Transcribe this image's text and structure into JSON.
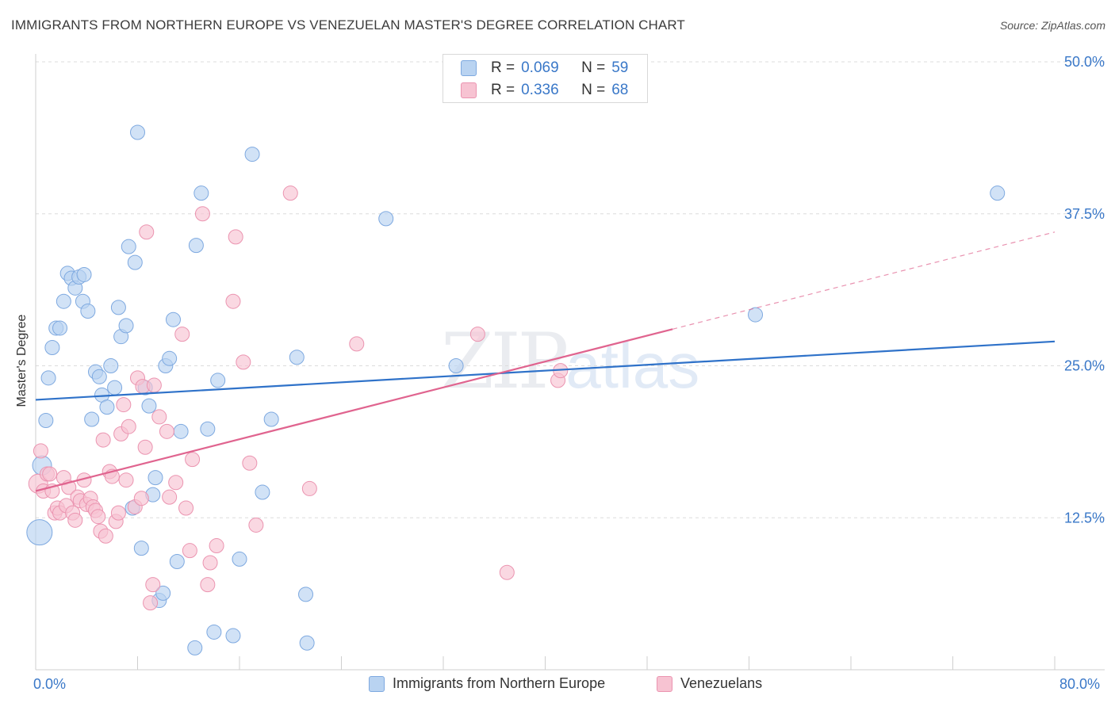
{
  "title": "IMMIGRANTS FROM NORTHERN EUROPE VS VENEZUELAN MASTER'S DEGREE CORRELATION CHART",
  "source": "Source: ZipAtlas.com",
  "watermark": {
    "zip": "ZIP",
    "atlas": "atlas"
  },
  "colors": {
    "blue_fill": "#b9d3f1",
    "blue_stroke": "#7ea9e0",
    "blue_line": "#2f72c9",
    "pink_fill": "#f7c3d2",
    "pink_stroke": "#eb94b0",
    "pink_line": "#e0648f",
    "tick_text": "#3a78c8",
    "grid": "#dcdcdc"
  },
  "legend": {
    "rows": [
      {
        "r_key": "R =",
        "r_val": "0.069",
        "n_key": "N =",
        "n_val": "59"
      },
      {
        "r_key": "R =",
        "r_val": "0.336",
        "n_key": "N =",
        "n_val": "68"
      }
    ]
  },
  "chart_data": {
    "type": "scatter",
    "title": "IMMIGRANTS FROM NORTHERN EUROPE VS VENEZUELAN MASTER'S DEGREE CORRELATION CHART",
    "xlabel": "",
    "ylabel": "Master's Degree",
    "xlim": [
      0,
      80
    ],
    "ylim": [
      0,
      50
    ],
    "x_tick_labels": [
      "0.0%",
      "80.0%"
    ],
    "y_ticks": [
      12.5,
      25.0,
      37.5,
      50.0
    ],
    "y_tick_labels": [
      "12.5%",
      "25.0%",
      "37.5%",
      "50.0%"
    ],
    "grid": true,
    "legend_position": "top-center",
    "series": [
      {
        "name": "Immigrants from Northern Europe",
        "color": "blue",
        "points": [
          [
            0.3,
            11.3,
            3
          ],
          [
            0.5,
            16.8,
            2
          ],
          [
            0.8,
            20.5,
            1
          ],
          [
            1.0,
            24.0,
            1
          ],
          [
            1.3,
            26.5,
            1
          ],
          [
            1.6,
            28.1,
            1
          ],
          [
            1.9,
            28.1,
            1
          ],
          [
            2.2,
            30.3,
            1
          ],
          [
            2.5,
            32.6,
            1
          ],
          [
            2.8,
            32.2,
            1
          ],
          [
            3.1,
            31.4,
            1
          ],
          [
            3.4,
            32.3,
            1
          ],
          [
            3.7,
            30.3,
            1
          ],
          [
            3.8,
            32.5,
            1
          ],
          [
            4.1,
            29.5,
            1
          ],
          [
            4.4,
            20.6,
            1
          ],
          [
            4.7,
            24.5,
            1
          ],
          [
            5.0,
            24.1,
            1
          ],
          [
            5.2,
            22.6,
            1
          ],
          [
            5.6,
            21.6,
            1
          ],
          [
            5.9,
            25.0,
            1
          ],
          [
            6.2,
            23.2,
            1
          ],
          [
            6.5,
            29.8,
            1
          ],
          [
            6.7,
            27.4,
            1
          ],
          [
            7.1,
            28.3,
            1
          ],
          [
            7.3,
            34.8,
            1
          ],
          [
            7.6,
            13.3,
            1
          ],
          [
            7.8,
            33.5,
            1
          ],
          [
            8.0,
            44.2,
            1
          ],
          [
            8.3,
            10.0,
            1
          ],
          [
            8.6,
            23.2,
            1
          ],
          [
            8.9,
            21.7,
            1
          ],
          [
            9.2,
            14.4,
            1
          ],
          [
            9.4,
            15.8,
            1
          ],
          [
            9.7,
            5.7,
            1
          ],
          [
            10.0,
            6.3,
            1
          ],
          [
            10.2,
            25.0,
            1
          ],
          [
            10.5,
            25.6,
            1
          ],
          [
            10.8,
            28.8,
            1
          ],
          [
            11.1,
            8.9,
            1
          ],
          [
            11.4,
            19.6,
            1
          ],
          [
            12.5,
            1.8,
            1
          ],
          [
            12.6,
            34.9,
            1
          ],
          [
            13.0,
            39.2,
            1
          ],
          [
            13.5,
            19.8,
            1
          ],
          [
            14.0,
            3.1,
            1
          ],
          [
            14.3,
            23.8,
            1
          ],
          [
            15.5,
            2.8,
            1
          ],
          [
            16.0,
            9.1,
            1
          ],
          [
            17.0,
            42.4,
            1
          ],
          [
            17.8,
            14.6,
            1
          ],
          [
            18.5,
            20.6,
            1
          ],
          [
            20.5,
            25.7,
            1
          ],
          [
            21.2,
            6.2,
            1
          ],
          [
            21.3,
            2.2,
            1
          ],
          [
            27.5,
            37.1,
            1
          ],
          [
            33.0,
            25.0,
            1
          ],
          [
            56.5,
            29.2,
            1
          ],
          [
            75.5,
            39.2,
            1
          ]
        ],
        "trend": {
          "x0": 0,
          "y0": 22.2,
          "x1": 80,
          "y1": 27.0,
          "solid_until": 80
        }
      },
      {
        "name": "Venezuelans",
        "color": "pink",
        "points": [
          [
            0.2,
            15.3,
            2
          ],
          [
            0.4,
            18.0,
            1
          ],
          [
            0.6,
            14.7,
            1
          ],
          [
            0.9,
            16.1,
            1
          ],
          [
            1.1,
            16.1,
            1
          ],
          [
            1.3,
            14.7,
            1
          ],
          [
            1.5,
            12.9,
            1
          ],
          [
            1.7,
            13.3,
            1
          ],
          [
            1.9,
            12.9,
            1
          ],
          [
            2.2,
            15.8,
            1
          ],
          [
            2.4,
            13.5,
            1
          ],
          [
            2.6,
            15.0,
            1
          ],
          [
            2.9,
            12.9,
            1
          ],
          [
            3.1,
            12.3,
            1
          ],
          [
            3.3,
            14.2,
            1
          ],
          [
            3.5,
            13.9,
            1
          ],
          [
            3.8,
            15.6,
            1
          ],
          [
            4.0,
            13.6,
            1
          ],
          [
            4.3,
            14.1,
            1
          ],
          [
            4.5,
            13.4,
            1
          ],
          [
            4.7,
            13.1,
            1
          ],
          [
            4.9,
            12.6,
            1
          ],
          [
            5.1,
            11.4,
            1
          ],
          [
            5.3,
            18.9,
            1
          ],
          [
            5.5,
            11.0,
            1
          ],
          [
            5.8,
            16.3,
            1
          ],
          [
            6.0,
            15.9,
            1
          ],
          [
            6.3,
            12.2,
            1
          ],
          [
            6.5,
            12.9,
            1
          ],
          [
            6.7,
            19.4,
            1
          ],
          [
            6.9,
            21.8,
            1
          ],
          [
            7.1,
            15.6,
            1
          ],
          [
            7.3,
            20.0,
            1
          ],
          [
            7.8,
            13.4,
            1
          ],
          [
            8.0,
            24.0,
            1
          ],
          [
            8.3,
            14.1,
            1
          ],
          [
            8.4,
            23.3,
            1
          ],
          [
            8.7,
            36.0,
            1
          ],
          [
            8.6,
            18.3,
            1
          ],
          [
            9.0,
            5.5,
            1
          ],
          [
            9.2,
            7.0,
            1
          ],
          [
            9.3,
            23.4,
            1
          ],
          [
            9.7,
            20.8,
            1
          ],
          [
            10.3,
            19.6,
            1
          ],
          [
            10.5,
            14.2,
            1
          ],
          [
            11.0,
            15.4,
            1
          ],
          [
            11.5,
            27.6,
            1
          ],
          [
            11.8,
            13.3,
            1
          ],
          [
            12.1,
            9.8,
            1
          ],
          [
            12.3,
            17.3,
            1
          ],
          [
            13.1,
            37.5,
            1
          ],
          [
            13.5,
            7.0,
            1
          ],
          [
            13.7,
            8.8,
            1
          ],
          [
            14.2,
            10.2,
            1
          ],
          [
            15.7,
            35.6,
            1
          ],
          [
            15.5,
            30.3,
            1
          ],
          [
            16.3,
            25.3,
            1
          ],
          [
            16.8,
            17.0,
            1
          ],
          [
            17.3,
            11.9,
            1
          ],
          [
            20.0,
            39.2,
            1
          ],
          [
            21.5,
            14.9,
            1
          ],
          [
            25.2,
            26.8,
            1
          ],
          [
            34.7,
            27.6,
            1
          ],
          [
            37.0,
            8.0,
            1
          ],
          [
            41.0,
            23.8,
            1
          ],
          [
            41.2,
            24.6,
            1
          ]
        ],
        "trend": {
          "x0": 0,
          "y0": 14.7,
          "x1": 80,
          "y1": 36.0,
          "solid_until": 50
        }
      }
    ]
  },
  "bottom_legend": {
    "items": [
      {
        "label": "Immigrants from Northern Europe"
      },
      {
        "label": "Venezuelans"
      }
    ]
  }
}
